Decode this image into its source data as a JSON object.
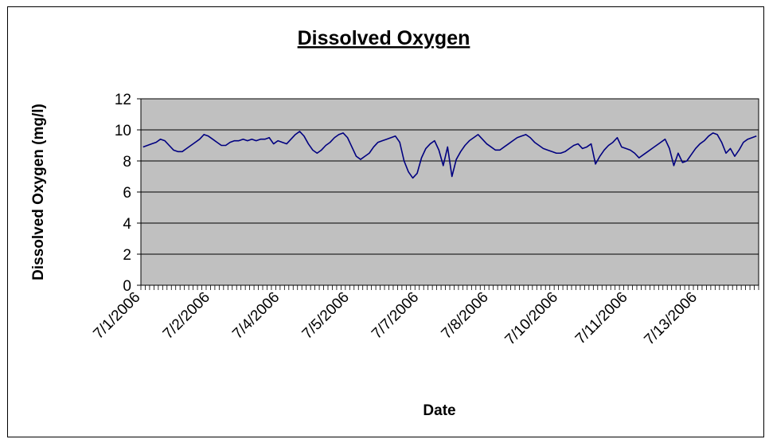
{
  "chart_data": {
    "type": "line",
    "title": "Dissolved Oxygen",
    "y_label": "Dissolved Oxygen (mg/l)",
    "x_label": "Date",
    "color": "#000080",
    "ylim": [
      0,
      12
    ],
    "yticks": [
      0,
      2,
      4,
      6,
      8,
      10,
      12
    ],
    "grid": true,
    "categories": [
      "7/1/2006",
      null,
      null,
      null,
      null,
      null,
      null,
      null,
      null,
      null,
      null,
      null,
      null,
      null,
      null,
      null,
      "7/2/2006",
      null,
      null,
      null,
      null,
      null,
      null,
      null,
      null,
      null,
      null,
      null,
      null,
      null,
      null,
      null,
      "7/4/2006",
      null,
      null,
      null,
      null,
      null,
      null,
      null,
      null,
      null,
      null,
      null,
      null,
      null,
      null,
      null,
      "7/5/2006",
      null,
      null,
      null,
      null,
      null,
      null,
      null,
      null,
      null,
      null,
      null,
      null,
      null,
      null,
      null,
      "7/7/2006",
      null,
      null,
      null,
      null,
      null,
      null,
      null,
      null,
      null,
      null,
      null,
      null,
      null,
      null,
      null,
      "7/8/2006",
      null,
      null,
      null,
      null,
      null,
      null,
      null,
      null,
      null,
      null,
      null,
      null,
      null,
      null,
      null,
      "7/10/2006",
      null,
      null,
      null,
      null,
      null,
      null,
      null,
      null,
      null,
      null,
      null,
      null,
      null,
      null,
      null,
      "7/11/2006",
      null,
      null,
      null,
      null,
      null,
      null,
      null,
      null,
      null,
      null,
      null,
      null,
      null,
      null,
      null,
      "7/13/2006",
      null,
      null,
      null,
      null,
      null,
      null,
      null,
      null,
      null,
      null,
      null,
      null,
      null
    ],
    "values": [
      8.9,
      9.0,
      9.1,
      9.2,
      9.4,
      9.3,
      9.0,
      8.7,
      8.6,
      8.6,
      8.8,
      9.0,
      9.2,
      9.4,
      9.7,
      9.6,
      9.4,
      9.2,
      9.0,
      9.0,
      9.2,
      9.3,
      9.3,
      9.4,
      9.3,
      9.4,
      9.3,
      9.4,
      9.4,
      9.5,
      9.1,
      9.3,
      9.2,
      9.1,
      9.4,
      9.7,
      9.9,
      9.6,
      9.1,
      8.7,
      8.5,
      8.7,
      9.0,
      9.2,
      9.5,
      9.7,
      9.8,
      9.5,
      8.9,
      8.3,
      8.1,
      8.3,
      8.5,
      8.9,
      9.2,
      9.3,
      9.4,
      9.5,
      9.6,
      9.2,
      8.0,
      7.3,
      6.9,
      7.2,
      8.2,
      8.8,
      9.1,
      9.3,
      8.7,
      7.7,
      8.9,
      7.0,
      8.1,
      8.6,
      9.0,
      9.3,
      9.5,
      9.7,
      9.4,
      9.1,
      8.9,
      8.7,
      8.7,
      8.9,
      9.1,
      9.3,
      9.5,
      9.6,
      9.7,
      9.5,
      9.2,
      9.0,
      8.8,
      8.7,
      8.6,
      8.5,
      8.5,
      8.6,
      8.8,
      9.0,
      9.1,
      8.8,
      8.9,
      9.1,
      7.8,
      8.3,
      8.7,
      9.0,
      9.2,
      9.5,
      8.9,
      8.8,
      8.7,
      8.5,
      8.2,
      8.4,
      8.6,
      8.8,
      9.0,
      9.2,
      9.4,
      8.8,
      7.7,
      8.5,
      7.9,
      8.0,
      8.4,
      8.8,
      9.1,
      9.3,
      9.6,
      9.8,
      9.7,
      9.2,
      8.5,
      8.8,
      8.3,
      8.7,
      9.2,
      9.4,
      9.5,
      9.6
    ]
  }
}
